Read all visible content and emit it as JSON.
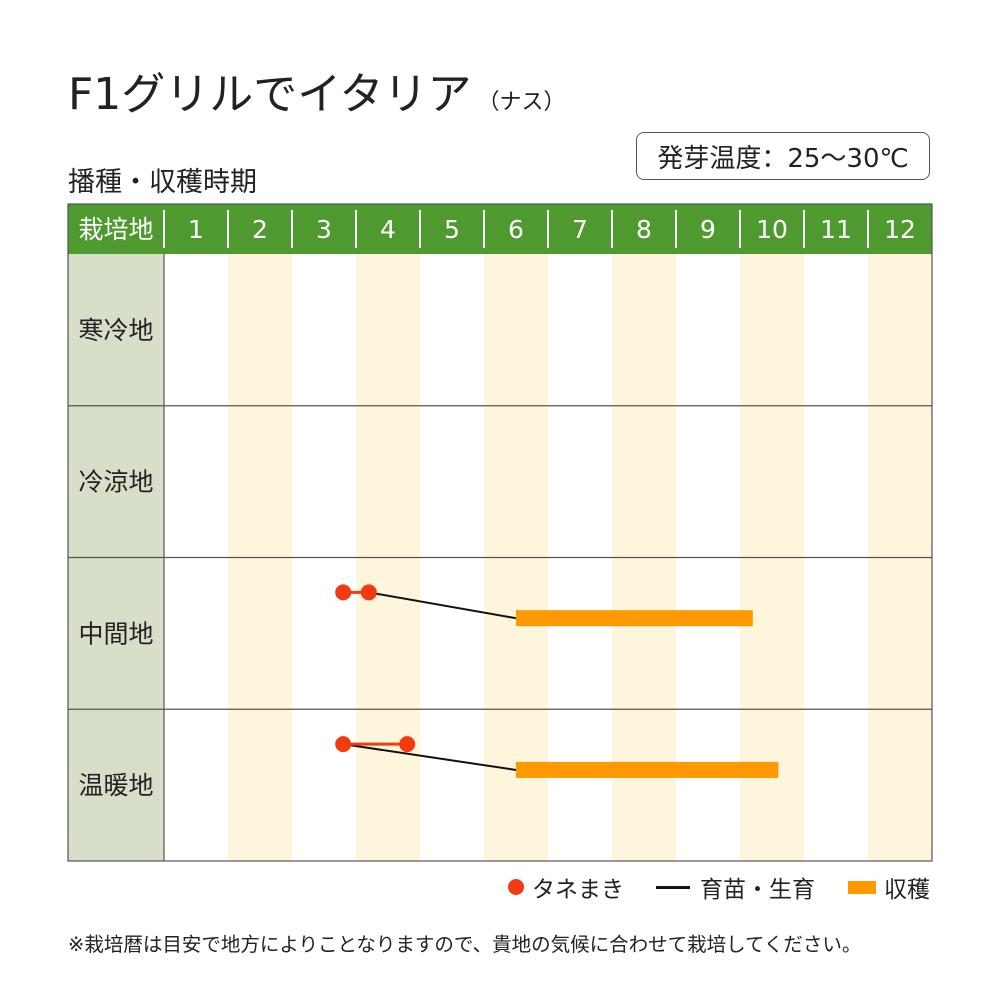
{
  "title": {
    "main": "F1グリルでイタリア",
    "sub": "（ナス）"
  },
  "subtitle": "播種・収穫時期",
  "germination_temp": "発芽温度：25〜30℃",
  "legend": {
    "sowing": "タネまき",
    "seedling": "育苗・生育",
    "harvest": "収穫"
  },
  "note": "※栽培暦は目安で地方によりことなりますので、貴地の気候に合わせて栽培してください。",
  "colors": {
    "header_green": "#4e9a2f",
    "region_col": "#d8dfc8",
    "stripe": "#fdf5dc",
    "sowing": "#f23b10",
    "harvest": "#ff9900",
    "growth_line": "#111111",
    "grid": "#555555"
  },
  "chart_data": {
    "type": "gantt",
    "corner_label": "栽培地",
    "months": [
      "1",
      "2",
      "3",
      "4",
      "5",
      "6",
      "7",
      "8",
      "9",
      "10",
      "11",
      "12"
    ],
    "regions": [
      {
        "name": "寒冷地",
        "sowing": null,
        "growth": null,
        "harvest": null
      },
      {
        "name": "冷涼地",
        "sowing": null,
        "growth": null,
        "harvest": null
      },
      {
        "name": "中間地",
        "sowing": [
          3.8,
          4.2
        ],
        "growth": [
          4.2,
          6.5
        ],
        "harvest": [
          6.5,
          10.2
        ]
      },
      {
        "name": "温暖地",
        "sowing": [
          3.8,
          4.8
        ],
        "growth": [
          3.8,
          6.5
        ],
        "harvest": [
          6.5,
          10.6
        ]
      }
    ]
  }
}
